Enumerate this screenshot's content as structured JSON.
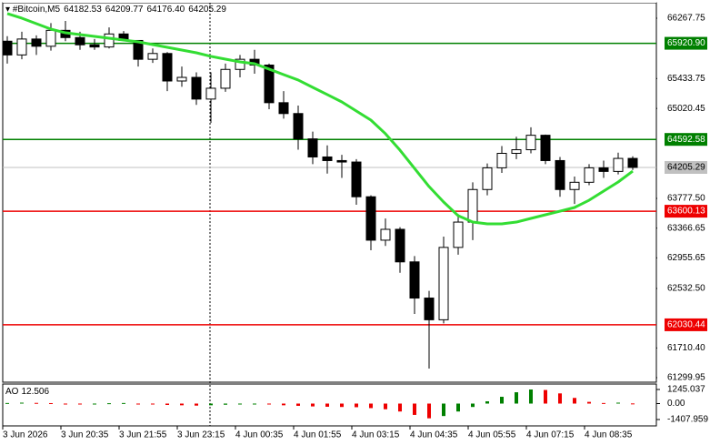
{
  "chart_data": {
    "type": "candlestick",
    "header": {
      "symbol": "#Bitcoin,M5",
      "ohlc": [
        "64182.53",
        "64209.77",
        "64176.40",
        "64205.29"
      ]
    },
    "categories": [
      "3 Jun 2026",
      null,
      null,
      null,
      "3 Jun 20:35",
      null,
      null,
      null,
      "3 Jun 21:55",
      null,
      null,
      null,
      "3 Jun 23:15",
      null,
      null,
      null,
      "4 Jun 00:35",
      null,
      null,
      null,
      "4 Jun 01:55",
      null,
      null,
      null,
      "4 Jun 03:15",
      null,
      null,
      null,
      "4 Jun 04:35",
      null,
      null,
      null,
      "4 Jun 05:55",
      null,
      null,
      null,
      "4 Jun 07:15",
      null,
      null,
      null,
      "4 Jun 08:35",
      null,
      null,
      null
    ],
    "candles": {
      "open": [
        65950,
        65760,
        65980,
        65880,
        66100,
        66000,
        65900,
        65870,
        66050,
        65960,
        65700,
        65780,
        65400,
        65450,
        65150,
        65300,
        65560,
        65700,
        65620,
        65100,
        64950,
        64600,
        64350,
        64300,
        64280,
        63800,
        63200,
        63350,
        62900,
        62400,
        62100,
        63100,
        63450,
        63900,
        64200,
        64400,
        64450,
        64650,
        64300,
        63900,
        64000,
        64200,
        64150,
        64330
      ],
      "high": [
        66020,
        66080,
        66030,
        66200,
        66230,
        66080,
        65980,
        66140,
        66090,
        65960,
        65850,
        65800,
        65600,
        65520,
        65520,
        65640,
        65760,
        65830,
        65640,
        65260,
        65060,
        64700,
        64510,
        64380,
        64320,
        63820,
        63500,
        63380,
        62980,
        62500,
        63250,
        63560,
        64000,
        64260,
        64500,
        64630,
        64760,
        64660,
        64350,
        64080,
        64250,
        64300,
        64410,
        64360
      ],
      "low": [
        65640,
        65700,
        65760,
        65820,
        65950,
        65830,
        65830,
        65850,
        65950,
        65600,
        65650,
        65260,
        65320,
        65070,
        64820,
        65250,
        65450,
        65500,
        65010,
        64880,
        64450,
        64250,
        64120,
        64060,
        63690,
        63060,
        63120,
        62750,
        62180,
        61425,
        62050,
        63000,
        63200,
        63820,
        64130,
        64320,
        64400,
        64250,
        63800,
        63700,
        63960,
        64060,
        64110,
        64170
      ],
      "close": [
        65760,
        65980,
        65880,
        66100,
        66000,
        65900,
        65870,
        66050,
        65960,
        65700,
        65780,
        65400,
        65450,
        65150,
        65300,
        65560,
        65700,
        65620,
        65100,
        64950,
        64600,
        64350,
        64300,
        64280,
        63800,
        63200,
        63350,
        62900,
        62400,
        62100,
        63100,
        63450,
        63900,
        64200,
        64400,
        64450,
        64650,
        64300,
        63900,
        64000,
        64200,
        64150,
        64330,
        64205.29
      ]
    },
    "ma": {
      "color": "#33dd33",
      "values": [
        66331,
        66268,
        66192,
        66117,
        66066,
        66041,
        66016,
        65991,
        65966,
        65941,
        65903,
        65865,
        65828,
        65790,
        65740,
        65702,
        65664,
        65639,
        65564,
        65488,
        65413,
        65312,
        65212,
        65111,
        64985,
        64859,
        64671,
        64444,
        64192,
        63941,
        63727,
        63538,
        63450,
        63425,
        63425,
        63450,
        63501,
        63551,
        63601,
        63652,
        63752,
        63878,
        64004,
        64154
      ]
    },
    "ylim": [
      61299.95,
      66267.75
    ],
    "yticks": [
      66267.75,
      65433.75,
      {
        "value": 65020.45,
        "label": "65020.45"
      },
      {
        "value": 63777.5,
        "label": "63777.50"
      },
      63366.65,
      62955.65,
      {
        "value": 62532.5,
        "label": "62532.50"
      },
      {
        "value": 61710.4,
        "label": "61710.40"
      },
      61299.95
    ],
    "levels": [
      {
        "value": 65920.9,
        "label": "65920.90",
        "color": "#008000"
      },
      {
        "value": 64592.58,
        "label": "64592.58",
        "color": "#008000"
      },
      {
        "value": 63600.13,
        "label": "63600.13",
        "color": "#ee0000"
      },
      {
        "value": 62030.44,
        "label": "62030.44",
        "color": "#ee0000"
      }
    ],
    "last": 64205.29,
    "ao": {
      "name": "AO",
      "up_color": "#008000",
      "down_color": "#ee0000",
      "values": [
        50,
        80,
        60,
        40,
        -30,
        -60,
        -40,
        30,
        50,
        -20,
        -80,
        -120,
        -150,
        -180,
        -150,
        -100,
        -60,
        -40,
        -80,
        -150,
        -200,
        -250,
        -280,
        -300,
        -320,
        -400,
        -500,
        -700,
        -1000,
        -1300,
        -1100,
        -700,
        -300,
        200,
        600,
        1000,
        1245,
        1200,
        900,
        500,
        150,
        50,
        80,
        12.506
      ],
      "ylim": [
        -1407.959,
        1245.037
      ],
      "yticks": [
        1245.037,
        {
          "value": 0,
          "label": "0.00"
        },
        -1407.959
      ]
    }
  }
}
